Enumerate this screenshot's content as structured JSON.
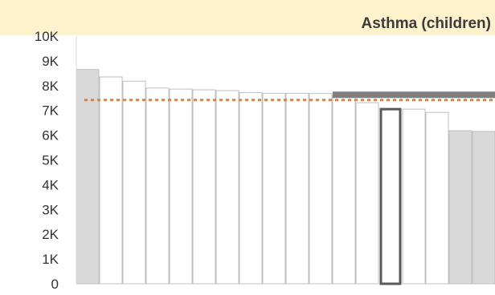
{
  "chart_data": {
    "type": "bar",
    "title": "Asthma (children)",
    "xlabel": "",
    "ylabel": "",
    "ylim": [
      0,
      10000
    ],
    "y_ticks": [
      0,
      1000,
      2000,
      3000,
      4000,
      5000,
      6000,
      7000,
      8000,
      9000,
      10000
    ],
    "y_tick_labels": [
      "0",
      "1K",
      "2K",
      "3K",
      "4K",
      "5K",
      "6K",
      "7K",
      "8K",
      "9K",
      "10K"
    ],
    "grid": false,
    "legend": "none",
    "values": [
      8650,
      8350,
      8180,
      7900,
      7860,
      7830,
      7800,
      7720,
      7690,
      7690,
      7680,
      7600,
      7310,
      7050,
      7050,
      6920,
      6180,
      6150
    ],
    "styles": [
      "shaded",
      "open",
      "open",
      "open",
      "open",
      "open",
      "open",
      "open",
      "open",
      "open",
      "open",
      "open",
      "open",
      "highlighted",
      "open",
      "open",
      "shaded",
      "shaded"
    ],
    "reference_line": {
      "value": 7420,
      "style": "dotted",
      "color": "#ed7d31"
    },
    "benchmark_band": {
      "value": 7630,
      "from_bar": 11,
      "to_bar": 17,
      "color": "#7f7f7f"
    },
    "colors": {
      "title_band": "#fdf2cc",
      "shaded_fill": "#d9d9d9",
      "bar_outline": "#bfbfbf",
      "highlight_outline": "#595959",
      "axis": "#d9d9d9"
    }
  }
}
